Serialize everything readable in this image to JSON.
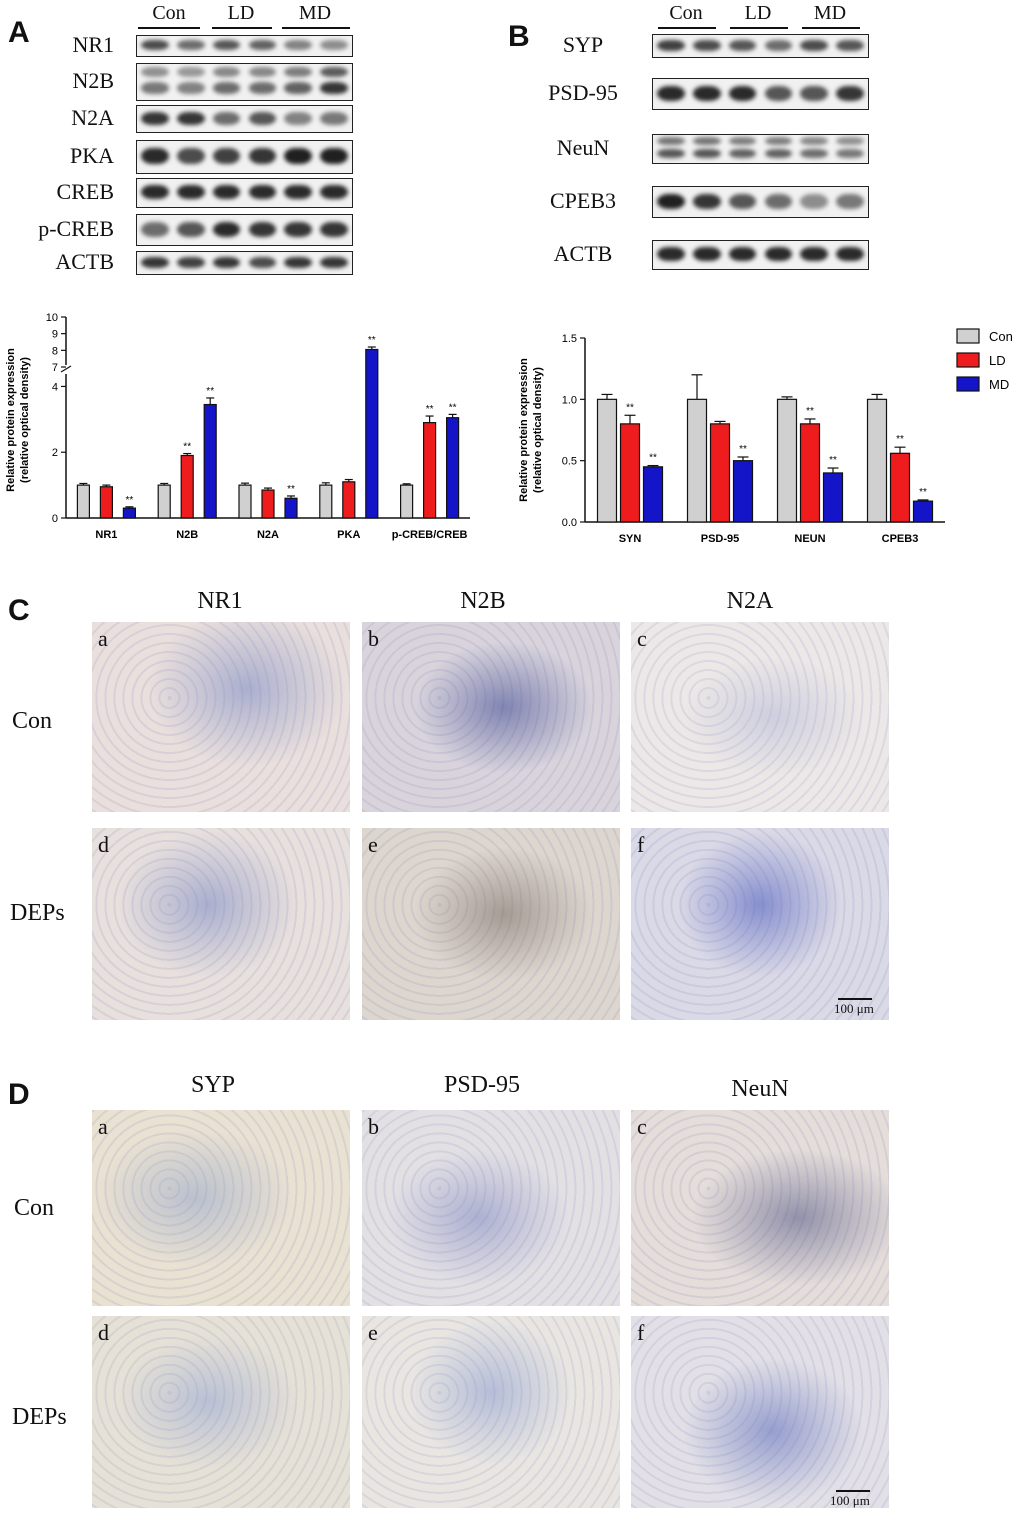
{
  "panels": {
    "A": "A",
    "B": "B",
    "C": "C",
    "D": "D"
  },
  "blotA": {
    "groups": [
      "Con",
      "LD",
      "MD"
    ],
    "rows": [
      "NR1",
      "N2B",
      "N2A",
      "PKA",
      "CREB",
      "p-CREB",
      "ACTB"
    ]
  },
  "blotB": {
    "groups": [
      "Con",
      "LD",
      "MD"
    ],
    "rows": [
      "SYP",
      "PSD-95",
      "NeuN",
      "CPEB3",
      "ACTB"
    ]
  },
  "legend": {
    "items": [
      {
        "name": "Con",
        "color": "#d0d0d0"
      },
      {
        "name": "LD",
        "color": "#ee1c1c"
      },
      {
        "name": "MD",
        "color": "#1414c8"
      }
    ]
  },
  "chart_data": [
    {
      "type": "bar",
      "panel": "A",
      "ylabel": "Relative protein expression\n(relative optical density)",
      "ylabel_line1": "Relative protein expression",
      "ylabel_line2": "(relative optical density)",
      "axis_break": true,
      "ylim_lower": [
        0,
        4.5
      ],
      "ylim_upper": [
        7,
        10
      ],
      "yticks_lower": [
        "0",
        "2",
        "4"
      ],
      "yticks_upper": [
        "7",
        "8",
        "9",
        "10"
      ],
      "categories": [
        "NR1",
        "N2B",
        "N2A",
        "PKA",
        "p-CREB/CREB"
      ],
      "series": [
        {
          "name": "Con",
          "values": [
            1.0,
            1.0,
            1.0,
            1.0,
            1.0
          ],
          "errors": [
            0.05,
            0.05,
            0.06,
            0.07,
            0.04
          ],
          "sig": [
            "",
            "",
            "",
            "",
            ""
          ]
        },
        {
          "name": "LD",
          "values": [
            0.95,
            1.9,
            0.85,
            1.1,
            2.9
          ],
          "errors": [
            0.05,
            0.06,
            0.06,
            0.07,
            0.2
          ],
          "sig": [
            "",
            "**",
            "",
            "",
            "**"
          ]
        },
        {
          "name": "MD",
          "values": [
            0.3,
            3.45,
            0.6,
            8.05,
            3.05
          ],
          "errors": [
            0.04,
            0.2,
            0.07,
            0.15,
            0.1
          ],
          "sig": [
            "**",
            "**",
            "**",
            "**",
            "**"
          ]
        }
      ]
    },
    {
      "type": "bar",
      "panel": "B",
      "ylabel": "Relative protein expression\n(relative optical density)",
      "ylabel_line1": "Relative protein expression",
      "ylabel_line2": "(relative optical density)",
      "ylim": [
        0,
        1.5
      ],
      "yticks": [
        "0.0",
        "0.5",
        "1.0",
        "1.5"
      ],
      "categories": [
        "SYN",
        "PSD-95",
        "NEUN",
        "CPEB3"
      ],
      "series": [
        {
          "name": "Con",
          "values": [
            1.0,
            1.0,
            1.0,
            1.0
          ],
          "errors": [
            0.04,
            0.2,
            0.02,
            0.04
          ],
          "sig": [
            "",
            "",
            "",
            ""
          ]
        },
        {
          "name": "LD",
          "values": [
            0.8,
            0.8,
            0.8,
            0.56
          ],
          "errors": [
            0.07,
            0.02,
            0.04,
            0.05
          ],
          "sig": [
            "**",
            "",
            "**",
            "**"
          ]
        },
        {
          "name": "MD",
          "values": [
            0.45,
            0.5,
            0.4,
            0.17
          ],
          "errors": [
            0.01,
            0.03,
            0.04,
            0.01
          ],
          "sig": [
            "**",
            "**",
            "**",
            "**"
          ]
        }
      ]
    }
  ],
  "panelC": {
    "columns": [
      "NR1",
      "N2B",
      "N2A"
    ],
    "rows": [
      "Con",
      "DEPs"
    ],
    "tile_letters": [
      "a",
      "b",
      "c",
      "d",
      "e",
      "f"
    ],
    "scale": "100 μm"
  },
  "panelD": {
    "columns": [
      "SYP",
      "PSD-95",
      "NeuN"
    ],
    "rows": [
      "Con",
      "DEPs"
    ],
    "tile_letters": [
      "a",
      "b",
      "c",
      "d",
      "e",
      "f"
    ],
    "scale": "100 μm"
  }
}
